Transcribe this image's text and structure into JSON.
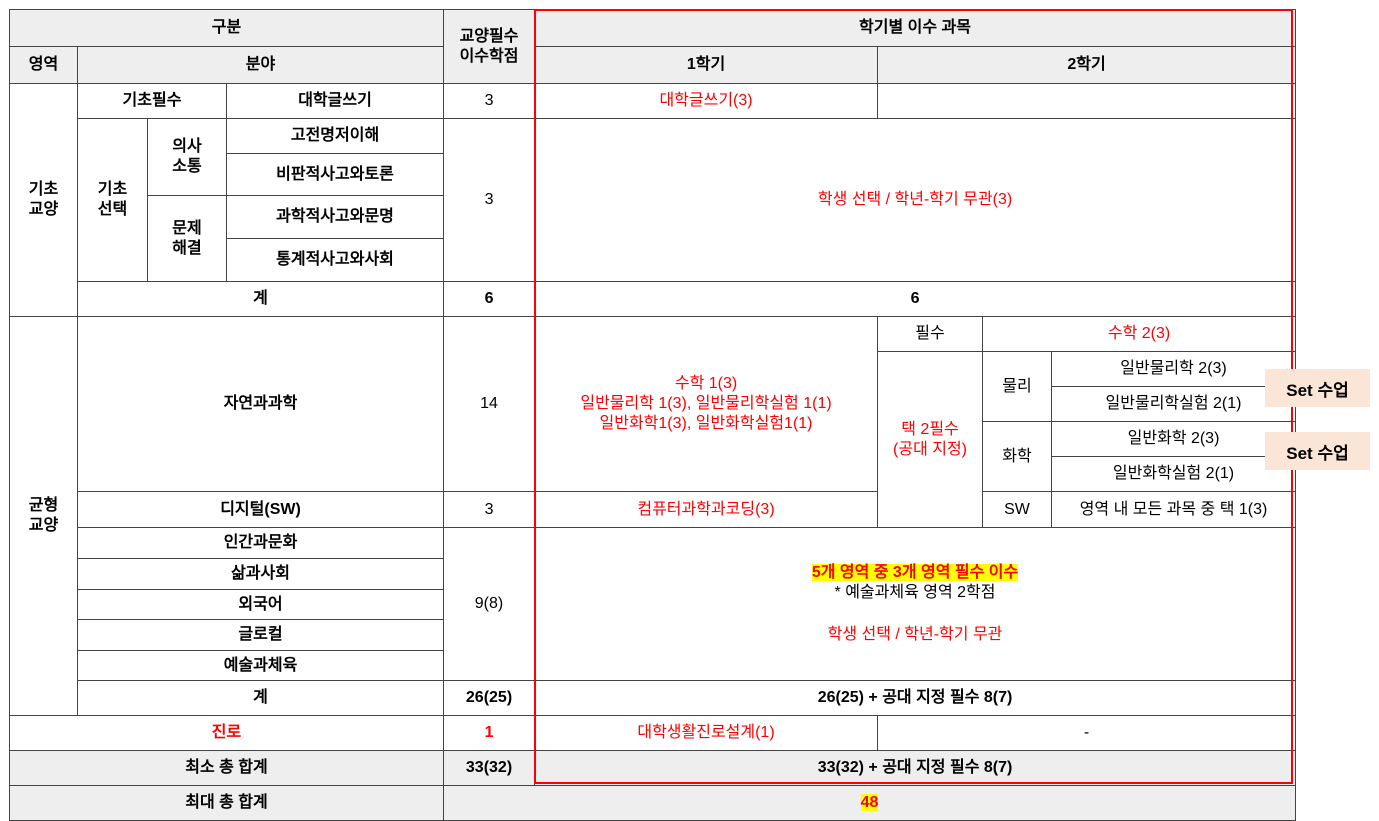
{
  "header": {
    "division": "구분",
    "credits": "교양필수\n이수학점",
    "courses_by_semester": "학기별 이수 과목",
    "area": "영역",
    "field": "분야",
    "sem1": "1학기",
    "sem2": "2학기"
  },
  "basic": {
    "area": "기초\n교양",
    "required": {
      "label": "기초필수",
      "subject": "대학글쓰기",
      "credits": "3",
      "sem1": "대학글쓰기(3)",
      "sem2": ""
    },
    "elective": {
      "label": "기초\n선택",
      "communication": "의사\n소통",
      "problem_solving": "문제\n해결",
      "subjects": [
        "고전명저이해",
        "비판적사고와토론",
        "과학적사고와문명",
        "통계적사고와사회"
      ],
      "credits": "3",
      "note": "학생 선택 / 학년-학기 무관(3)"
    },
    "total": {
      "label": "계",
      "credits": "6",
      "value": "6"
    }
  },
  "balanced": {
    "area": "균형\n교양",
    "natural": {
      "label": "자연과과학",
      "credits": "14",
      "sem1": [
        "수학 1(3)",
        "일반물리학 1(3), 일반물리학실험 1(1)",
        "일반화학1(3), 일반화학실험1(1)"
      ],
      "required_label": "필수",
      "required_course": "수학 2(3)",
      "choose_label": "택 2필수\n(공대 지정)",
      "physics": "물리",
      "physics_courses": [
        "일반물리학 2(3)",
        "일반물리학실험 2(1)"
      ],
      "chemistry": "화학",
      "chemistry_courses": [
        "일반화학 2(3)",
        "일반화학실험 2(1)"
      ]
    },
    "digital": {
      "label": "디지털(SW)",
      "credits": "3",
      "sem1": "컴퓨터과학과코딩(3)",
      "sw": "SW",
      "sw_course": "영역 내 모든 과목 중 택 1(3)"
    },
    "others": {
      "fields": [
        "인간과문화",
        "삶과사회",
        "외국어",
        "글로컬",
        "예술과체육"
      ],
      "credits": "9(8)",
      "highlight": "5개 영역 중 3개 영역 필수 이수",
      "note": "* 예술과체육 영역 2학점",
      "choice": "학생 선택 / 학년-학기 무관"
    },
    "total": {
      "label": "계",
      "credits": "26(25)",
      "value": "26(25) + 공대 지정 필수 8(7)"
    }
  },
  "career": {
    "label": "진로",
    "credits": "1",
    "sem1": "대학생활진로설계(1)",
    "sem2": "-"
  },
  "min_total": {
    "label": "최소 총 합계",
    "credits": "33(32)",
    "value": "33(32) + 공대 지정 필수 8(7)"
  },
  "max_total": {
    "label": "최대 총 합계",
    "value": "48"
  },
  "badges": [
    "Set 수업",
    "Set 수업"
  ],
  "colors": {
    "accent_red": "#ff0000",
    "highlight": "#ffff00",
    "header_bg": "#eeeeee",
    "badge_bg": "#fbe5d6"
  }
}
